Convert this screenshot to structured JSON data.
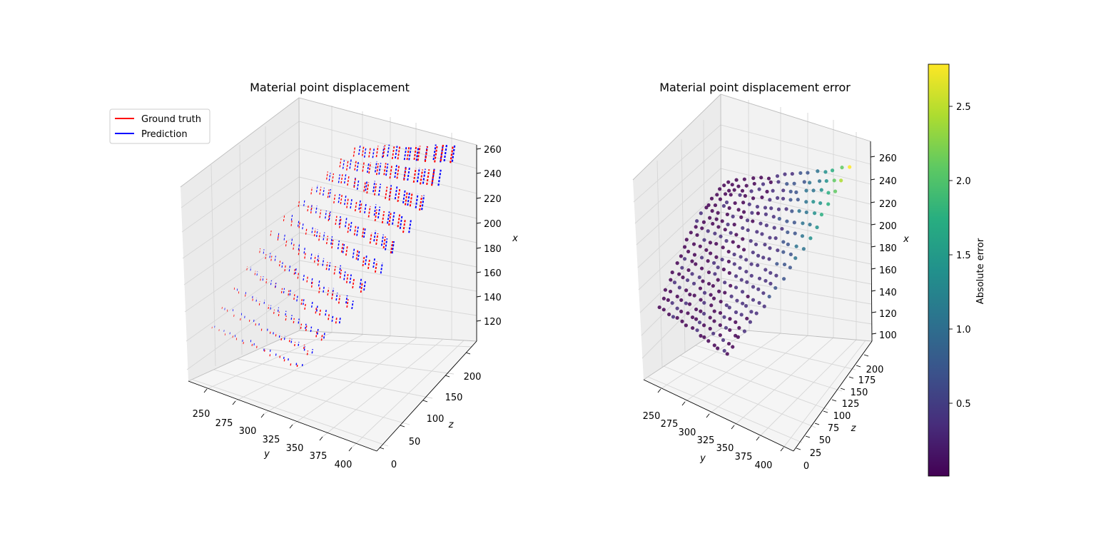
{
  "chart_data": [
    {
      "type": "line",
      "projection": "3d",
      "title": "Material point displacement",
      "xlabel": "y",
      "ylabel": "z",
      "zlabel": "x",
      "xticks": [
        "250",
        "275",
        "300",
        "325",
        "350",
        "375",
        "400"
      ],
      "yticks": [
        "0",
        "50",
        "100",
        "150",
        "200"
      ],
      "zticks": [
        "120",
        "140",
        "160",
        "180",
        "200",
        "220",
        "240",
        "260"
      ],
      "xlim": [
        240,
        415
      ],
      "ylim": [
        -5,
        225
      ],
      "zlim": [
        108,
        262
      ],
      "grid": true,
      "legend": "upper left",
      "series": [
        {
          "name": "Ground truth",
          "color": "#ff0000",
          "style": "dashed"
        },
        {
          "name": "Prediction",
          "color": "#0000ff",
          "style": "dashed"
        }
      ]
    },
    {
      "type": "scatter",
      "projection": "3d",
      "title": "Material point displacement error",
      "xlabel": "y",
      "ylabel": "z",
      "zlabel": "x",
      "xticks": [
        "250",
        "275",
        "300",
        "325",
        "350",
        "375",
        "400"
      ],
      "yticks": [
        "0",
        "25",
        "50",
        "75",
        "100",
        "125",
        "150",
        "175",
        "200"
      ],
      "zticks": [
        "100",
        "120",
        "140",
        "160",
        "180",
        "200",
        "220",
        "240",
        "260"
      ],
      "xlim": [
        240,
        415
      ],
      "ylim": [
        -5,
        225
      ],
      "zlim": [
        95,
        268
      ],
      "grid": true,
      "colormap": "viridis",
      "colorbar": {
        "label": "Absolute error",
        "ticks": [
          "0.5",
          "1.0",
          "1.5",
          "2.0",
          "2.5"
        ],
        "range": [
          0.0,
          2.8
        ]
      }
    }
  ]
}
